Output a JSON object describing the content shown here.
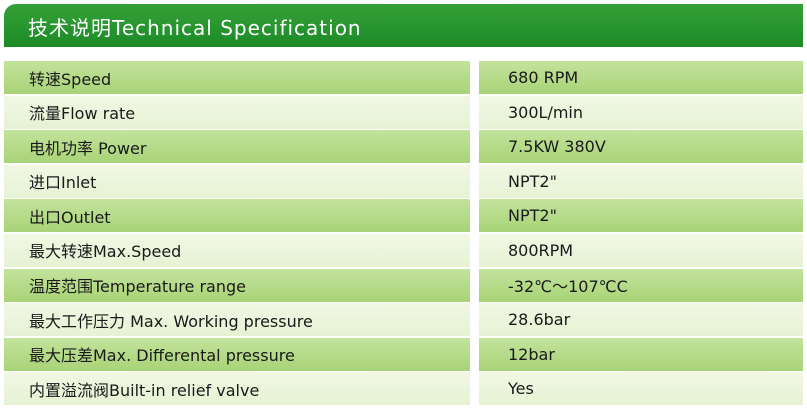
{
  "header": {
    "title": "技术说明Technical Specification"
  },
  "specs": [
    {
      "label": "转速Speed",
      "value": "680 RPM"
    },
    {
      "label": "流量Flow rate",
      "value": "300L/min"
    },
    {
      "label": "电机功率 Power",
      "value": "7.5KW 380V"
    },
    {
      "label": "进口Inlet",
      "value": "NPT2\""
    },
    {
      "label": "出口Outlet",
      "value": "NPT2\""
    },
    {
      "label": "最大转速Max.Speed",
      "value": "800RPM"
    },
    {
      "label": "温度范围Temperature range",
      "value": "-32℃～107℃C"
    },
    {
      "label": "最大工作压力 Max. Working pressure",
      "value": "28.6bar"
    },
    {
      "label": "最大压差Max. Differental pressure",
      "value": "12bar"
    },
    {
      "label": "内置溢流阀Built-in relief valve",
      "value": "Yes"
    }
  ],
  "colors": {
    "header_green": "#1c8a27",
    "row_green": "#b5da88",
    "row_light": "#eaf4da"
  }
}
